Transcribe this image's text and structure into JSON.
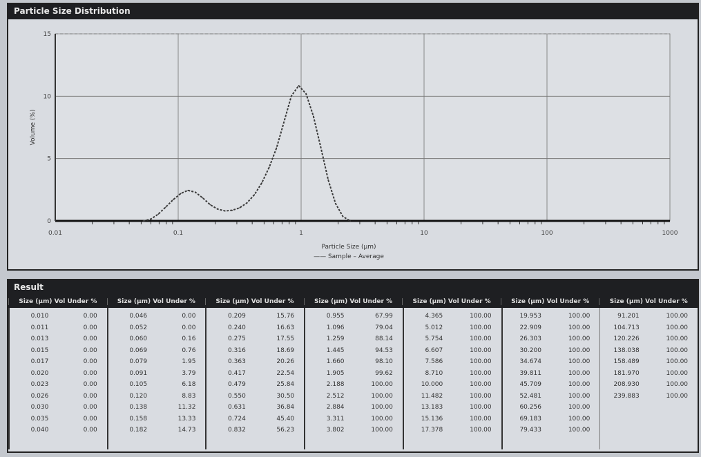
{
  "chart_panel": {
    "title": "Particle Size Distribution"
  },
  "chart_data": {
    "type": "line",
    "xlabel": "Particle Size (µm)",
    "ylabel": "Volume (%)",
    "xscale": "log",
    "xlim": [
      0.01,
      1000
    ],
    "ylim": [
      0,
      15
    ],
    "xticks": [
      "0.01",
      "0.1",
      "1",
      "10",
      "100",
      "1000"
    ],
    "yticks": [
      "0",
      "5",
      "10",
      "15"
    ],
    "grid": true,
    "legend": "—— Sample – Average",
    "legend_position": "bottom",
    "line_color": "#3a3a3a",
    "series": [
      {
        "x": [
          0.052,
          0.06,
          0.069,
          0.079,
          0.091,
          0.105,
          0.12,
          0.138,
          0.158,
          0.182,
          0.209,
          0.24,
          0.275,
          0.316,
          0.363,
          0.417,
          0.479,
          0.55,
          0.631,
          0.724,
          0.832,
          0.955,
          1.096,
          1.259,
          1.445,
          1.66,
          1.905,
          2.188,
          2.512
        ],
        "y": [
          0,
          0.15,
          0.55,
          1.1,
          1.7,
          2.2,
          2.45,
          2.3,
          1.85,
          1.3,
          0.95,
          0.8,
          0.85,
          1.05,
          1.45,
          2.1,
          3.05,
          4.3,
          5.85,
          7.9,
          10.0,
          10.85,
          10.2,
          8.4,
          5.9,
          3.3,
          1.4,
          0.35,
          0
        ]
      }
    ]
  },
  "table_panel": {
    "title": "Result",
    "column_header": "Size (µm)  Vol Under %",
    "columns": [
      {
        "sizes": [
          "0.010",
          "0.011",
          "0.013",
          "0.015",
          "0.017",
          "0.020",
          "0.023",
          "0.026",
          "0.030",
          "0.035",
          "0.040"
        ],
        "values": [
          "0.00",
          "0.00",
          "0.00",
          "0.00",
          "0.00",
          "0.00",
          "0.00",
          "0.00",
          "0.00",
          "0.00",
          "0.00"
        ]
      },
      {
        "sizes": [
          "0.046",
          "0.052",
          "0.060",
          "0.069",
          "0.079",
          "0.091",
          "0.105",
          "0.120",
          "0.138",
          "0.158",
          "0.182"
        ],
        "values": [
          "0.00",
          "0.00",
          "0.16",
          "0.76",
          "1.95",
          "3.79",
          "6.18",
          "8.83",
          "11.32",
          "13.33",
          "14.73"
        ]
      },
      {
        "sizes": [
          "0.209",
          "0.240",
          "0.275",
          "0.316",
          "0.363",
          "0.417",
          "0.479",
          "0.550",
          "0.631",
          "0.724",
          "0.832"
        ],
        "values": [
          "15.76",
          "16.63",
          "17.55",
          "18.69",
          "20.26",
          "22.54",
          "25.84",
          "30.50",
          "36.84",
          "45.40",
          "56.23"
        ]
      },
      {
        "sizes": [
          "0.955",
          "1.096",
          "1.259",
          "1.445",
          "1.660",
          "1.905",
          "2.188",
          "2.512",
          "2.884",
          "3.311",
          "3.802"
        ],
        "values": [
          "67.99",
          "79.04",
          "88.14",
          "94.53",
          "98.10",
          "99.62",
          "100.00",
          "100.00",
          "100.00",
          "100.00",
          "100.00"
        ]
      },
      {
        "sizes": [
          "4.365",
          "5.012",
          "5.754",
          "6.607",
          "7.586",
          "8.710",
          "10.000",
          "11.482",
          "13.183",
          "15.136",
          "17.378"
        ],
        "values": [
          "100.00",
          "100.00",
          "100.00",
          "100.00",
          "100.00",
          "100.00",
          "100.00",
          "100.00",
          "100.00",
          "100.00",
          "100.00"
        ]
      },
      {
        "sizes": [
          "19.953",
          "22.909",
          "26.303",
          "30.200",
          "34.674",
          "39.811",
          "45.709",
          "52.481",
          "60.256",
          "69.183",
          "79.433"
        ],
        "values": [
          "100.00",
          "100.00",
          "100.00",
          "100.00",
          "100.00",
          "100.00",
          "100.00",
          "100.00",
          "100.00",
          "100.00",
          "100.00"
        ]
      },
      {
        "sizes": [
          "91.201",
          "104.713",
          "120.226",
          "138.038",
          "158.489",
          "181.970",
          "208.930",
          "239.883"
        ],
        "values": [
          "100.00",
          "100.00",
          "100.00",
          "100.00",
          "100.00",
          "100.00",
          "100.00",
          "100.00"
        ]
      }
    ]
  }
}
